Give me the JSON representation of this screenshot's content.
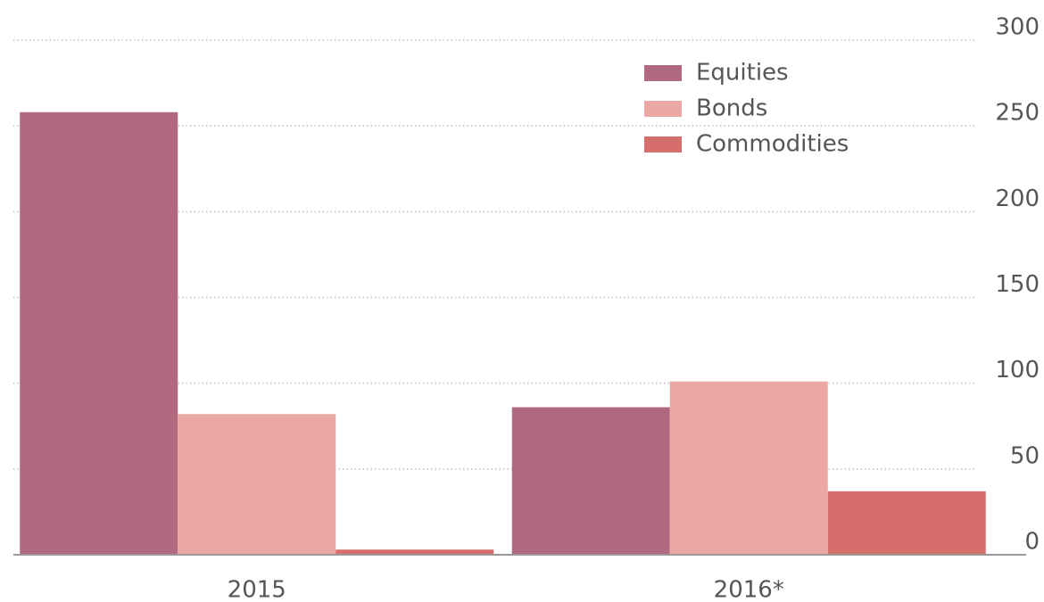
{
  "chart_data": {
    "type": "bar",
    "categories": [
      "2015",
      "2016*"
    ],
    "series": [
      {
        "name": "Equities",
        "color": "#b0697f",
        "values": [
          258,
          86
        ]
      },
      {
        "name": "Bonds",
        "color": "#eba8a5",
        "values": [
          82,
          101
        ]
      },
      {
        "name": "Commodities",
        "color": "#d66e6c",
        "values": [
          3,
          37
        ]
      }
    ],
    "ylim": [
      0,
      300
    ],
    "yticks": [
      0,
      50,
      100,
      150,
      200,
      250,
      300
    ],
    "grid": true,
    "legend": "top-right"
  }
}
